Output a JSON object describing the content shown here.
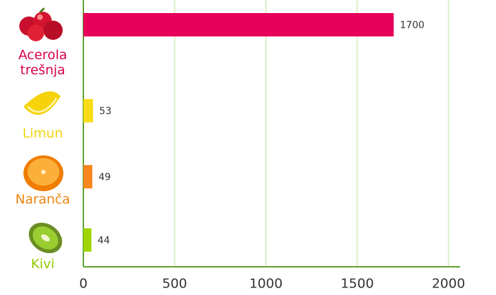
{
  "chart_data": {
    "type": "bar",
    "orientation": "horizontal",
    "categories": [
      "Acerola trešnja",
      "Limun",
      "Naranča",
      "Kivi"
    ],
    "values": [
      1700,
      53,
      49,
      44
    ],
    "colors": [
      "#e6005a",
      "#f8dc17",
      "#f7871e",
      "#a0d400"
    ],
    "label_colors": [
      "#d9004c",
      "#f2d40a",
      "#ef8510",
      "#94c800"
    ],
    "xlim": [
      0,
      2000
    ],
    "xticks": [
      0,
      500,
      1000,
      1500,
      2000
    ],
    "grid": true
  }
}
